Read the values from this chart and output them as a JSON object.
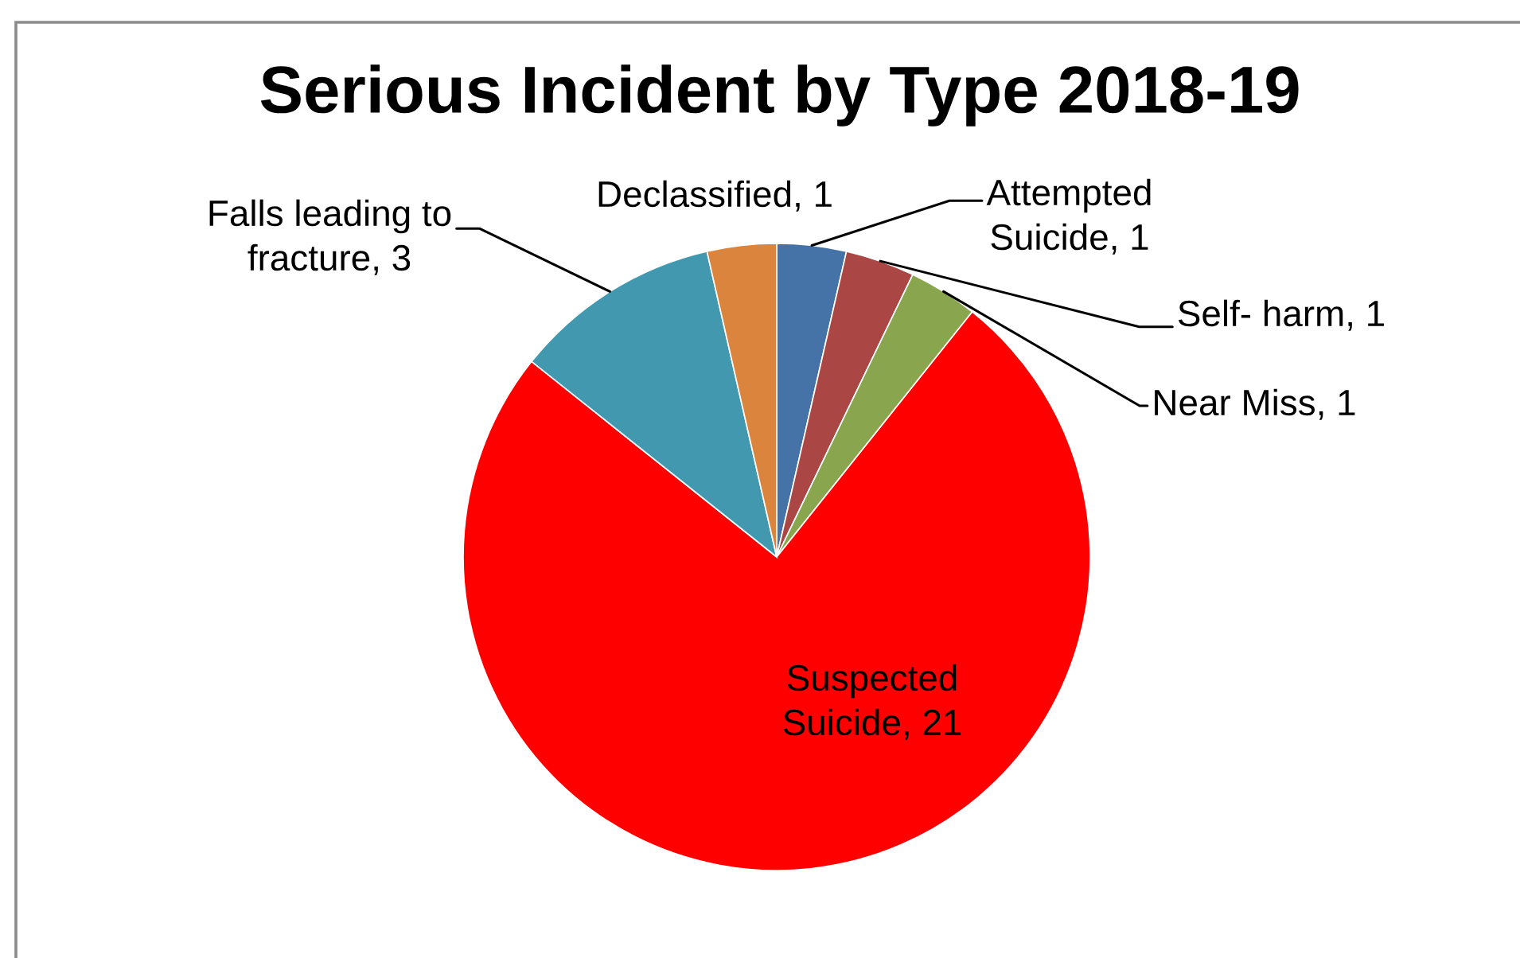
{
  "chart_data": {
    "type": "pie",
    "title": "Serious Incident by Type 2018-19",
    "categories": [
      "Attempted Suicide",
      "Self- harm",
      "Near Miss",
      "Suspected Suicide",
      "Falls leading to fracture",
      "Declassified"
    ],
    "values": [
      1,
      1,
      1,
      21,
      3,
      1
    ],
    "value_labels": [
      ", 1",
      ", 1",
      ", 1",
      ", 21",
      ", 3",
      ", 1"
    ],
    "colors": [
      "#4572a7",
      "#aa4643",
      "#89a54e",
      "#ff0000",
      "#4198af",
      "#db843d"
    ]
  }
}
